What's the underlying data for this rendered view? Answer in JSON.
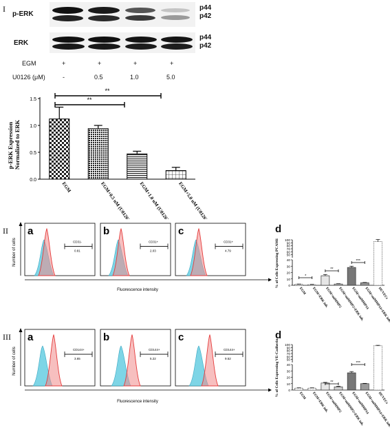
{
  "section_I": {
    "roman": "I",
    "blot_perk_label": "p-ERK",
    "blot_erk_label": "ERK",
    "band_p44": "p44",
    "band_p42": "p42",
    "egm_label": "EGM",
    "egm_marks": [
      "+",
      "+",
      "+",
      "+"
    ],
    "u0126_label": "U0126 (μM)",
    "u0126_values": [
      "-",
      "0.5",
      "1.0",
      "5.0"
    ],
    "sig_marks": [
      "**",
      "**"
    ]
  },
  "chart_data": [
    {
      "type": "bar",
      "ylabel": "p-ERK Expression Normalized to ERK",
      "categories": [
        "EGM",
        "EGM+0.5 uM (U0126)",
        "EGM+1.0 uM (U0126)",
        "EGM+5.0 uM (U0126)"
      ],
      "values": [
        1.12,
        0.94,
        0.47,
        0.16
      ],
      "errors": [
        0.22,
        0.06,
        0.05,
        0.06
      ],
      "ylim": [
        0,
        1.5
      ],
      "yticks": [
        "0.0",
        "0.5",
        "1.0",
        "1.5"
      ],
      "patterns": [
        "checker",
        "hatch-fine",
        "horizontal",
        "grid"
      ]
    },
    {
      "type": "bar",
      "ylabel": "% of Cells Expressing PCAM1",
      "categories": [
        "EGM",
        "EGM+ERK inh.",
        "EGM+miMMP2",
        "EGM+miMMP2+ERK inh.",
        "EGM+miMMP14",
        "EGM+miMMP14+ERK inh.",
        "HUVECs"
      ],
      "values": [
        1.5,
        1.0,
        15,
        2,
        28,
        4,
        94
      ],
      "errors": [
        0.5,
        0.5,
        2,
        0.5,
        2,
        0.5,
        7
      ],
      "yticks": [
        "0",
        "10",
        "20",
        "30",
        "40",
        "50",
        "60",
        "70",
        "80",
        "90",
        "100"
      ],
      "sig_marks": [
        "*",
        "**",
        "***"
      ]
    },
    {
      "type": "bar",
      "ylabel": "% of Cells Expressing VE-Cadherin",
      "categories": [
        "EGM",
        "EGM+ERK inh.",
        "EGM+miMMP2",
        "EGM+miMMP2+ERK inh.",
        "EGM+miMMP14",
        "EGM+miMMP14+ERK inh.",
        "HUVECs"
      ],
      "values": [
        3,
        3,
        11,
        5,
        27,
        10,
        96
      ],
      "errors": [
        0.5,
        0.5,
        1,
        1,
        2,
        0.5,
        1.5
      ],
      "yticks": [
        "0",
        "10",
        "20",
        "30",
        "40",
        "50",
        "60",
        "70",
        "80",
        "90",
        "100"
      ],
      "sig_marks": [
        "**",
        "***"
      ]
    }
  ],
  "section_II": {
    "roman": "II",
    "panels": [
      {
        "letter": "a",
        "gate": "CD31-",
        "pct": "0.81"
      },
      {
        "letter": "b",
        "gate": "CD31+",
        "pct": "2.03"
      },
      {
        "letter": "c",
        "gate": "CD31+",
        "pct": "4.79"
      }
    ],
    "d_letter": "d",
    "y_axis": "Number of cells",
    "x_axis": "Fluorescence intensity"
  },
  "section_III": {
    "roman": "III",
    "panels": [
      {
        "letter": "a",
        "gate": "CD144+",
        "pct": "3.65"
      },
      {
        "letter": "b",
        "gate": "CD144+",
        "pct": "5.22"
      },
      {
        "letter": "c",
        "gate": "CD144+",
        "pct": "9.52"
      }
    ],
    "d_letter": "d",
    "y_axis": "Number of cells",
    "x_axis": "Fluorescence intensity"
  }
}
